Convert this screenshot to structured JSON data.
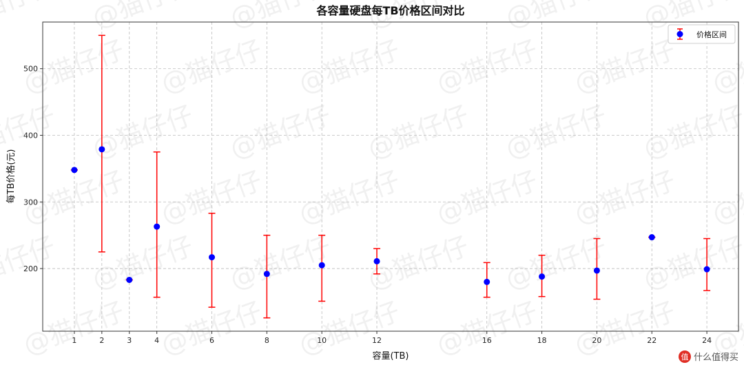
{
  "chart_data": {
    "type": "errorbar",
    "title": "各容量硬盘每TB价格区间对比",
    "xlabel": "容量(TB)",
    "ylabel": "每TB价格(元)",
    "xlim": [
      -0.15,
      25.15
    ],
    "ylim": [
      106,
      570
    ],
    "xticks": [
      1,
      2,
      3,
      4,
      6,
      8,
      10,
      12,
      16,
      18,
      20,
      22,
      24
    ],
    "yticks": [
      200,
      300,
      400,
      500
    ],
    "grid": true,
    "legend": {
      "placement": "top-right",
      "entries": [
        "价格区间"
      ]
    },
    "colors": {
      "point": "#0000ff",
      "errorbar": "#ff0000"
    },
    "series": [
      {
        "name": "价格区间",
        "x": [
          1,
          2,
          3,
          4,
          6,
          8,
          10,
          12,
          16,
          18,
          20,
          22,
          24
        ],
        "y": [
          348,
          379,
          183,
          263,
          217,
          192,
          205,
          211,
          180,
          188,
          197,
          247,
          199
        ],
        "low": [
          348,
          225,
          183,
          157,
          142,
          126,
          151,
          192,
          157,
          158,
          154,
          247,
          167
        ],
        "high": [
          348,
          550,
          183,
          375,
          283,
          250,
          250,
          230,
          209,
          220,
          245,
          247,
          245
        ]
      }
    ]
  },
  "watermark": "@猫仔仔",
  "logo": {
    "badge": "值",
    "text": "什么值得买"
  }
}
